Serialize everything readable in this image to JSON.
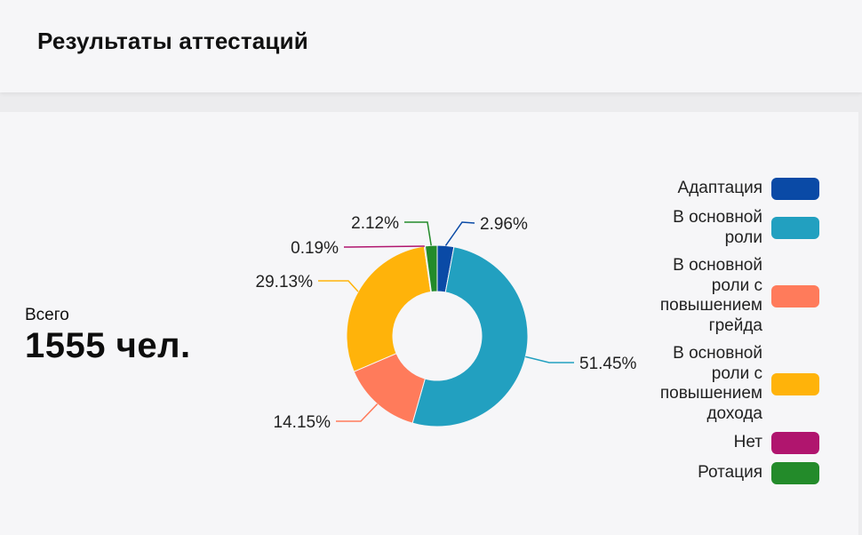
{
  "header": {
    "title": "Результаты аттестаций"
  },
  "summary": {
    "label": "Всего",
    "value": "1555 чел."
  },
  "chart_data": {
    "type": "pie",
    "variant": "donut",
    "title": "Результаты аттестаций",
    "total": 1555,
    "legend_position": "right",
    "slices": [
      {
        "name": "Адаптация",
        "label_lines": [
          "Адаптация"
        ],
        "value": 2.96,
        "label": "2.96%",
        "color": "#0a4aa6"
      },
      {
        "name": "В основной роли",
        "label_lines": [
          "В основной",
          "роли"
        ],
        "value": 51.45,
        "label": "51.45%",
        "color": "#22a0c0"
      },
      {
        "name": "В основной роли с повышением грейда",
        "label_lines": [
          "В основной",
          "роли с",
          "повышением",
          "грейда"
        ],
        "value": 14.15,
        "label": "14.15%",
        "color": "#ff7b5b"
      },
      {
        "name": "В основной роли с повышением дохода",
        "label_lines": [
          "В основной",
          "роли с",
          "повышением",
          "дохода"
        ],
        "value": 29.13,
        "label": "29.13%",
        "color": "#ffb30a"
      },
      {
        "name": "Нет",
        "label_lines": [
          "Нет"
        ],
        "value": 0.19,
        "label": "0.19%",
        "color": "#b0156e"
      },
      {
        "name": "Ротация",
        "label_lines": [
          "Ротация"
        ],
        "value": 2.12,
        "label": "2.12%",
        "color": "#238b2a"
      }
    ]
  }
}
